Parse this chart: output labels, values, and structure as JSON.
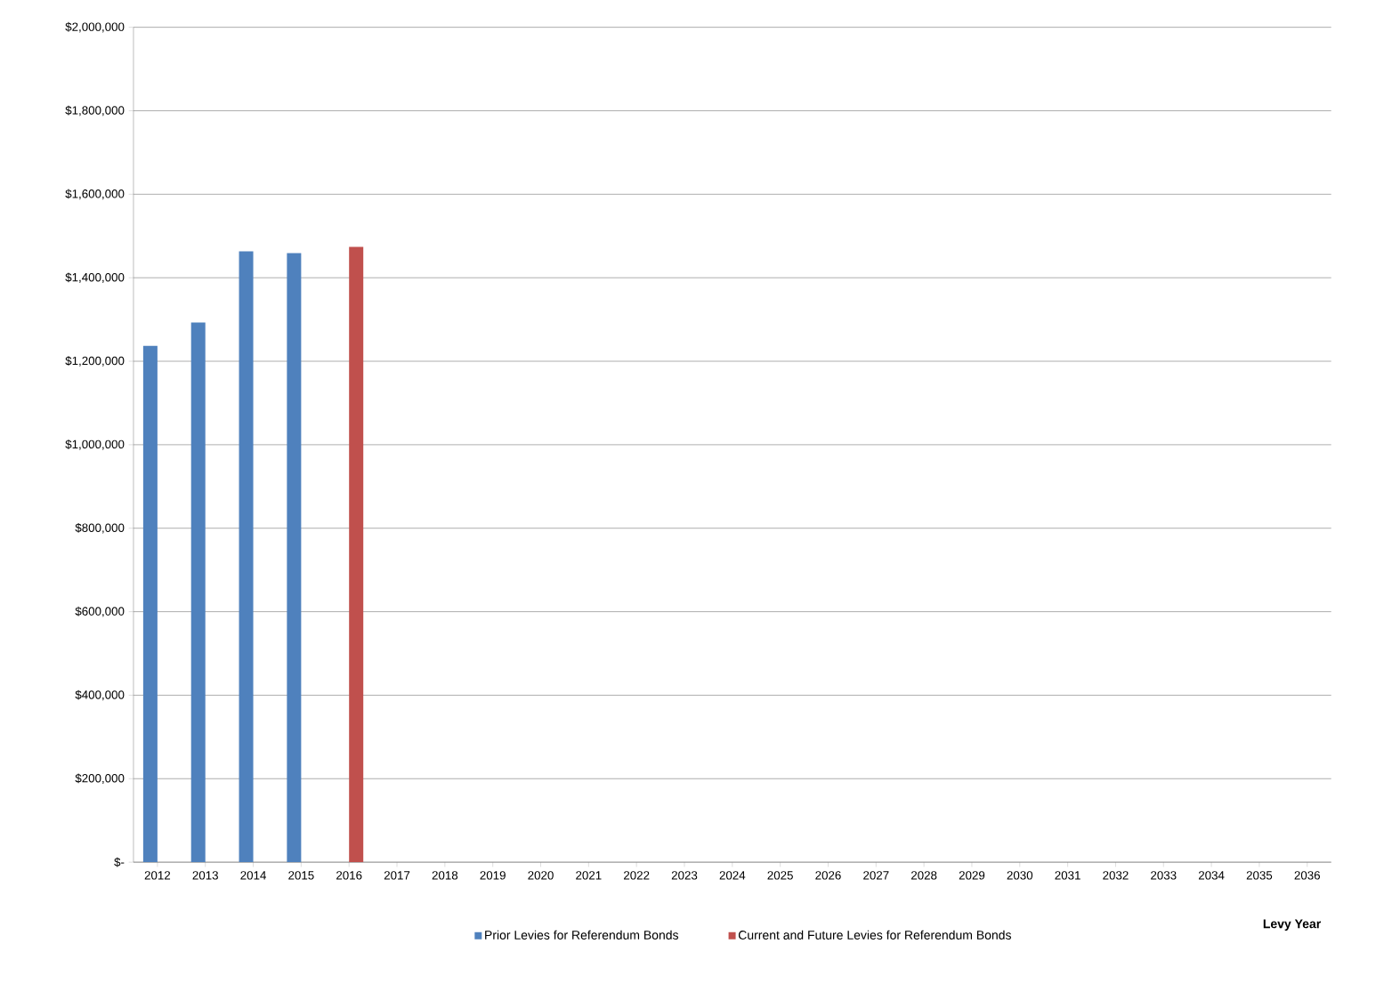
{
  "chart_data": {
    "type": "bar",
    "xlabel": "Levy Year",
    "categories": [
      "2012",
      "2013",
      "2014",
      "2015",
      "2016",
      "2017",
      "2018",
      "2019",
      "2020",
      "2021",
      "2022",
      "2023",
      "2024",
      "2025",
      "2026",
      "2027",
      "2028",
      "2029",
      "2030",
      "2031",
      "2032",
      "2033",
      "2034",
      "2035",
      "2036"
    ],
    "series": [
      {
        "name": "Prior Levies for Referendum Bonds",
        "color": "#4f81bd",
        "values": [
          1237000,
          1293000,
          1463000,
          1459000,
          null,
          null,
          null,
          null,
          null,
          null,
          null,
          null,
          null,
          null,
          null,
          null,
          null,
          null,
          null,
          null,
          null,
          null,
          null,
          null,
          null
        ]
      },
      {
        "name": "Current and Future Levies for Referendum Bonds",
        "color": "#c0504d",
        "values": [
          null,
          null,
          null,
          null,
          1474000,
          null,
          null,
          null,
          null,
          null,
          null,
          null,
          null,
          null,
          null,
          null,
          null,
          null,
          null,
          null,
          null,
          null,
          null,
          null,
          null
        ]
      }
    ],
    "ylim": [
      0,
      2000000
    ],
    "yticks": [
      {
        "value": 0,
        "label": "$-"
      },
      {
        "value": 200000,
        "label": "$200,000"
      },
      {
        "value": 400000,
        "label": "$400,000"
      },
      {
        "value": 600000,
        "label": "$600,000"
      },
      {
        "value": 800000,
        "label": "$800,000"
      },
      {
        "value": 1000000,
        "label": "$1,000,000"
      },
      {
        "value": 1200000,
        "label": "$1,200,000"
      },
      {
        "value": 1400000,
        "label": "$1,400,000"
      },
      {
        "value": 1600000,
        "label": "$1,600,000"
      },
      {
        "value": 1800000,
        "label": "$1,800,000"
      },
      {
        "value": 2000000,
        "label": "$2,000,000"
      }
    ],
    "grid": "y",
    "legend": "bottom"
  }
}
